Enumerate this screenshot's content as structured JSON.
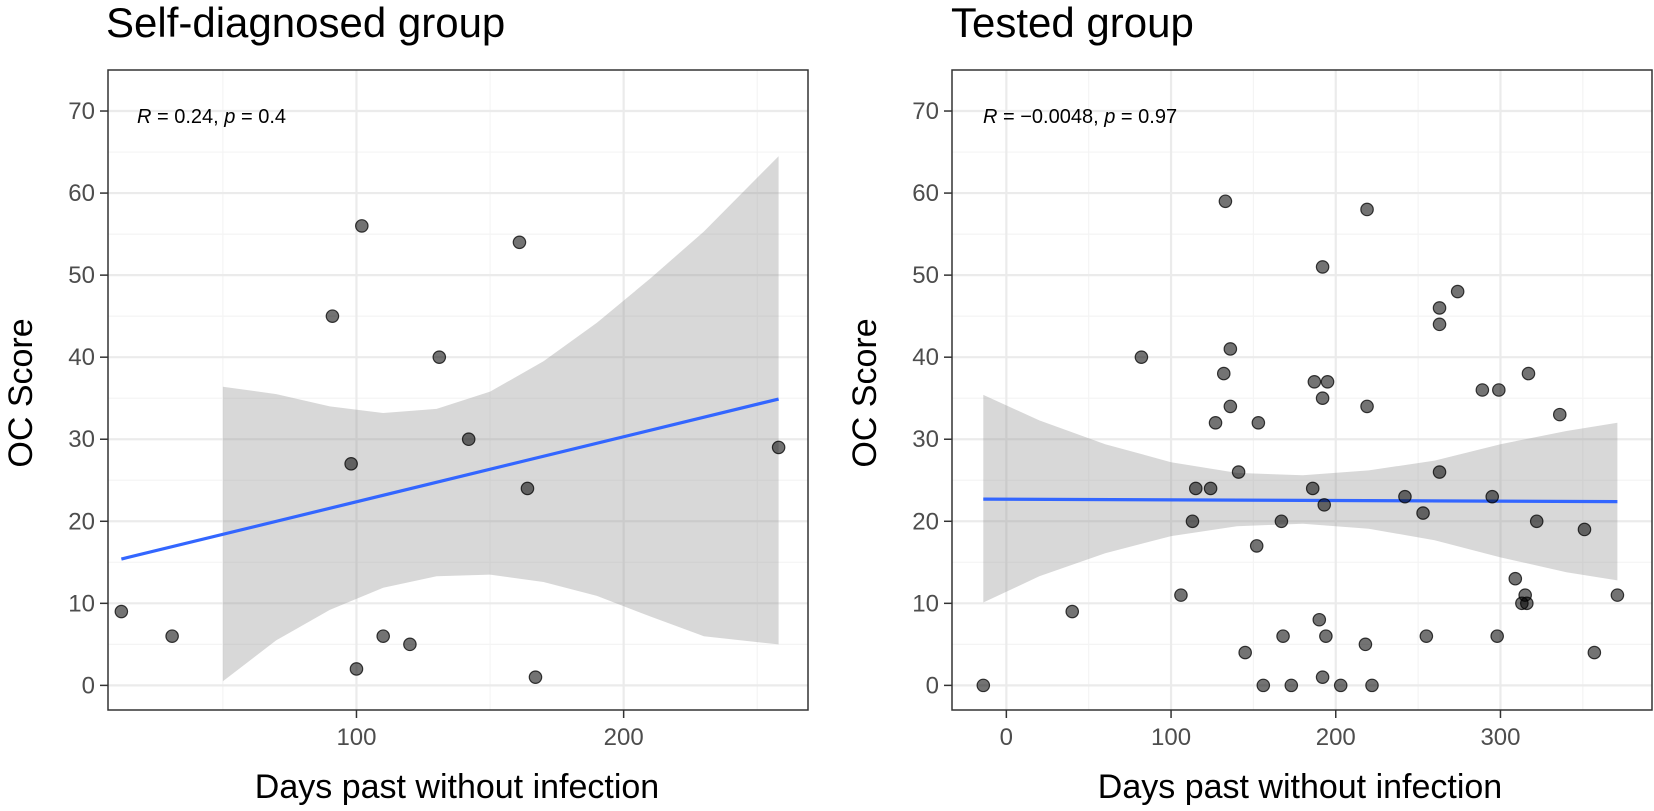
{
  "colors": {
    "point": "#595959",
    "fit_line": "#3366FF",
    "ribbon": "#999999",
    "grid_major": "#ebebeb",
    "grid_minor": "#f4f4f4",
    "panel_border": "#333333"
  },
  "chart_data": [
    {
      "type": "scatter",
      "title": "Self-diagnosed group",
      "xlabel": "Days past without infection",
      "ylabel": "OC Score",
      "annotation": {
        "R_label": "R",
        "R_text": " = 0.24, ",
        "p_label": "p",
        "p_text": " = 0.4"
      },
      "xlim": [
        7,
        269
      ],
      "ylim": [
        -3,
        75
      ],
      "xticks": [
        100,
        200
      ],
      "xtick_labels": [
        "100",
        "200"
      ],
      "yticks": [
        0,
        10,
        20,
        30,
        40,
        50,
        60,
        70
      ],
      "ytick_labels": [
        "0",
        "10",
        "20",
        "30",
        "40",
        "50",
        "60",
        "70"
      ],
      "grid": true,
      "points": [
        {
          "x": 12,
          "y": 9
        },
        {
          "x": 31,
          "y": 6
        },
        {
          "x": 91,
          "y": 45
        },
        {
          "x": 98,
          "y": 27
        },
        {
          "x": 100,
          "y": 2
        },
        {
          "x": 102,
          "y": 56
        },
        {
          "x": 110,
          "y": 6
        },
        {
          "x": 120,
          "y": 5
        },
        {
          "x": 131,
          "y": 40
        },
        {
          "x": 142,
          "y": 30
        },
        {
          "x": 161,
          "y": 54
        },
        {
          "x": 164,
          "y": 24
        },
        {
          "x": 167,
          "y": 1
        },
        {
          "x": 258,
          "y": 29
        }
      ],
      "fit": {
        "x": [
          12,
          258
        ],
        "y": [
          15.4,
          34.9
        ]
      },
      "ribbon": {
        "x": [
          50,
          70,
          90,
          110,
          130,
          150,
          170,
          190,
          210,
          230,
          258
        ],
        "lower": [
          0.5,
          5.5,
          9.2,
          11.9,
          13.3,
          13.5,
          12.6,
          10.9,
          8.4,
          6.0,
          5.0
        ],
        "upper": [
          36.4,
          35.5,
          34.0,
          33.2,
          33.7,
          35.8,
          39.5,
          44.2,
          49.6,
          55.3,
          64.5
        ]
      }
    },
    {
      "type": "scatter",
      "title": "Tested group",
      "xlabel": "Days past without infection",
      "ylabel": "OC Score",
      "annotation": {
        "R_label": "R",
        "R_text": " = −0.0048, ",
        "p_label": "p",
        "p_text": " = 0.97"
      },
      "xlim": [
        -33,
        392
      ],
      "ylim": [
        -3,
        75
      ],
      "xticks": [
        0,
        100,
        200,
        300
      ],
      "xtick_labels": [
        "0",
        "100",
        "200",
        "300"
      ],
      "yticks": [
        0,
        10,
        20,
        30,
        40,
        50,
        60,
        70
      ],
      "ytick_labels": [
        "0",
        "10",
        "20",
        "30",
        "40",
        "50",
        "60",
        "70"
      ],
      "grid": true,
      "points": [
        {
          "x": -14,
          "y": 0
        },
        {
          "x": 40,
          "y": 9
        },
        {
          "x": 82,
          "y": 40
        },
        {
          "x": 106,
          "y": 11
        },
        {
          "x": 113,
          "y": 20
        },
        {
          "x": 115,
          "y": 24
        },
        {
          "x": 124,
          "y": 24
        },
        {
          "x": 127,
          "y": 32
        },
        {
          "x": 132,
          "y": 38
        },
        {
          "x": 133,
          "y": 59
        },
        {
          "x": 136,
          "y": 34
        },
        {
          "x": 136,
          "y": 41
        },
        {
          "x": 141,
          "y": 26
        },
        {
          "x": 145,
          "y": 4
        },
        {
          "x": 152,
          "y": 17
        },
        {
          "x": 153,
          "y": 32
        },
        {
          "x": 156,
          "y": 0
        },
        {
          "x": 167,
          "y": 20
        },
        {
          "x": 168,
          "y": 6
        },
        {
          "x": 173,
          "y": 0
        },
        {
          "x": 186,
          "y": 24
        },
        {
          "x": 187,
          "y": 37
        },
        {
          "x": 190,
          "y": 8
        },
        {
          "x": 192,
          "y": 35
        },
        {
          "x": 192,
          "y": 51
        },
        {
          "x": 192,
          "y": 1
        },
        {
          "x": 193,
          "y": 22
        },
        {
          "x": 194,
          "y": 6
        },
        {
          "x": 195,
          "y": 37
        },
        {
          "x": 203,
          "y": 0
        },
        {
          "x": 218,
          "y": 5
        },
        {
          "x": 219,
          "y": 34
        },
        {
          "x": 219,
          "y": 58
        },
        {
          "x": 222,
          "y": 0
        },
        {
          "x": 242,
          "y": 23
        },
        {
          "x": 253,
          "y": 21
        },
        {
          "x": 255,
          "y": 6
        },
        {
          "x": 263,
          "y": 26
        },
        {
          "x": 263,
          "y": 44
        },
        {
          "x": 263,
          "y": 46
        },
        {
          "x": 274,
          "y": 48
        },
        {
          "x": 289,
          "y": 36
        },
        {
          "x": 295,
          "y": 23
        },
        {
          "x": 298,
          "y": 6
        },
        {
          "x": 299,
          "y": 36
        },
        {
          "x": 309,
          "y": 13
        },
        {
          "x": 313,
          "y": 10
        },
        {
          "x": 315,
          "y": 11
        },
        {
          "x": 316,
          "y": 10
        },
        {
          "x": 317,
          "y": 38
        },
        {
          "x": 322,
          "y": 20
        },
        {
          "x": 336,
          "y": 33
        },
        {
          "x": 351,
          "y": 19
        },
        {
          "x": 357,
          "y": 4
        },
        {
          "x": 371,
          "y": 11
        }
      ],
      "fit": {
        "x": [
          -14,
          371
        ],
        "y": [
          22.7,
          22.4
        ]
      },
      "ribbon": {
        "x": [
          -14,
          20,
          60,
          100,
          140,
          180,
          220,
          260,
          300,
          340,
          371
        ],
        "lower": [
          10.1,
          13.3,
          16.1,
          18.2,
          19.4,
          19.7,
          19.1,
          17.7,
          15.6,
          13.8,
          12.8
        ],
        "upper": [
          35.4,
          32.3,
          29.4,
          27.2,
          25.9,
          25.6,
          26.2,
          27.4,
          29.4,
          31.0,
          32.0
        ]
      }
    }
  ]
}
